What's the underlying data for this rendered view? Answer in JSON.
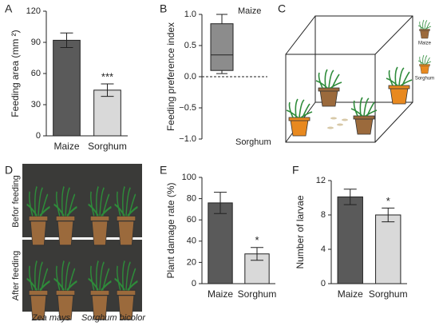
{
  "chart_data": [
    {
      "type": "bar",
      "panel": "A",
      "y_label": "Feeding area (mm ²)",
      "categories": [
        "Maize",
        "Sorghum"
      ],
      "values": [
        92,
        44
      ],
      "errors": [
        7,
        6
      ],
      "colors": [
        "#5a5a5a",
        "#d9d9d9"
      ],
      "significance": [
        null,
        "***"
      ],
      "ylim": [
        0,
        120
      ],
      "yticks": [
        0,
        30,
        60,
        90,
        120
      ]
    },
    {
      "type": "box",
      "panel": "B",
      "y_label": "Feeding preference index",
      "top_label": "Maize",
      "bottom_label": "Sorghum",
      "whisker_low": 0.05,
      "q1": 0.1,
      "median": 0.35,
      "q3": 0.85,
      "whisker_high": 1.0,
      "color": "#8c8c8c",
      "ylim": [
        -1,
        1
      ],
      "yticks": [
        {
          "value": -1,
          "label": "−1.0"
        },
        {
          "value": -0.5,
          "label": "−0.5"
        },
        {
          "value": 0,
          "label": "0.0"
        },
        0.5,
        {
          "value": 1,
          "label": "1.0"
        }
      ],
      "reference_line": 0
    },
    {
      "type": "bar",
      "panel": "E",
      "y_label": "Plant damage rate (%)",
      "categories": [
        "Maize",
        "Sorghum"
      ],
      "values": [
        76,
        28
      ],
      "errors": [
        10,
        6
      ],
      "colors": [
        "#5a5a5a",
        "#d9d9d9"
      ],
      "significance": [
        null,
        "*"
      ],
      "ylim": [
        0,
        100
      ],
      "yticks": [
        0,
        20,
        40,
        60,
        80,
        100
      ]
    },
    {
      "type": "bar",
      "panel": "F",
      "y_label": "Number of larvae",
      "categories": [
        "Maize",
        "Sorghum"
      ],
      "values": [
        10.1,
        8.0
      ],
      "errors": [
        0.9,
        0.8
      ],
      "colors": [
        "#5a5a5a",
        "#d9d9d9"
      ],
      "significance": [
        null,
        "*"
      ],
      "ylim": [
        0,
        12
      ],
      "yticks": [
        0,
        4,
        8,
        12
      ]
    }
  ],
  "diagram": {
    "panel": "C",
    "legend": [
      "Maize",
      "Sorghum"
    ]
  },
  "photo": {
    "panel": "D",
    "top_label": "Befor feeding",
    "bottom_label": "After feeding",
    "captions": [
      "Zea mays",
      "Sorghum bicolor"
    ]
  }
}
